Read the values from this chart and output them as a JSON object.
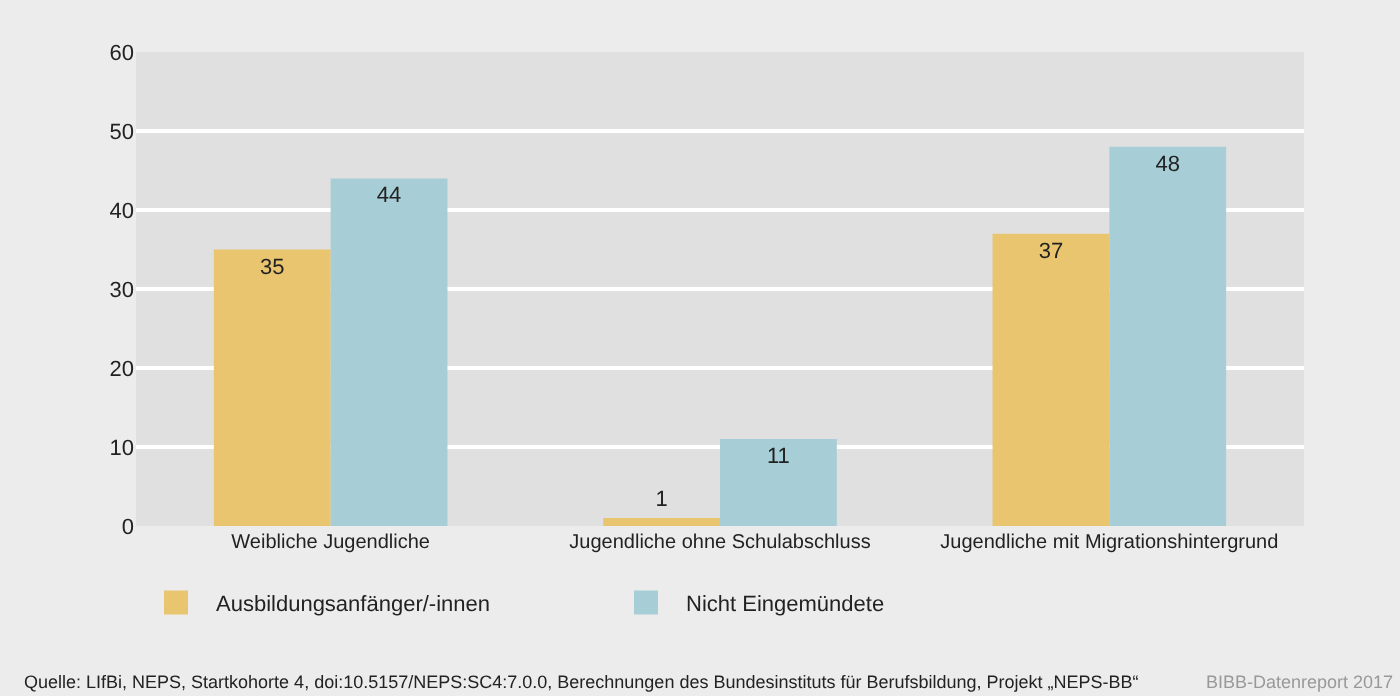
{
  "chart_data": {
    "type": "bar",
    "categories": [
      "Weibliche Jugendliche",
      "Jugendliche ohne Schulabschluss",
      "Jugendliche mit Migrationshintergrund"
    ],
    "series": [
      {
        "name": "Ausbildungsanfänger/-innen",
        "color": "#e8c56e",
        "values": [
          35,
          1,
          37
        ]
      },
      {
        "name": "Nicht Eingemündete",
        "color": "#a7cdd6",
        "values": [
          44,
          11,
          48
        ]
      }
    ],
    "ylim": [
      0,
      60
    ],
    "yticks": [
      0,
      10,
      20,
      30,
      40,
      50,
      60
    ],
    "grid": "y",
    "legend": "bottom left",
    "data_labels": true,
    "annotations": [
      "Quelle: LIfBi, NEPS, Startkohorte 4, doi:10.5157/NEPS:SC4:7.0.0, Berechnungen des Bundesinstituts für Berufsbildung, Projekt „NEPS-BB“",
      "BIBB-Datenreport 2017"
    ]
  }
}
